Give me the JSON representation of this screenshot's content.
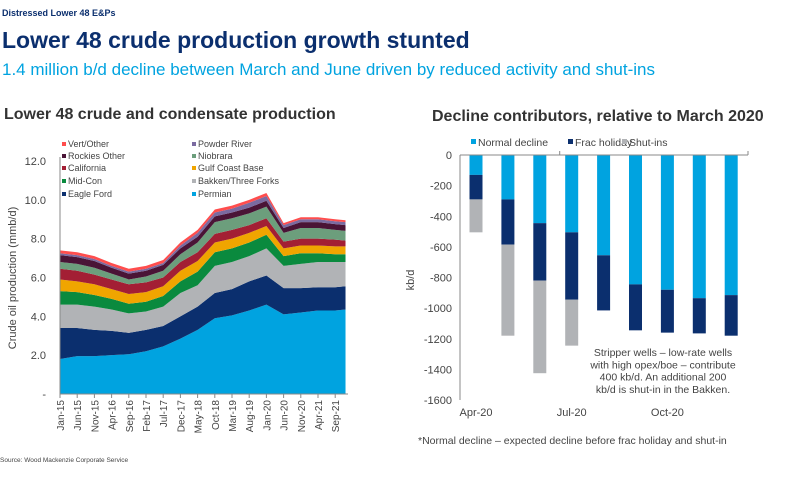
{
  "header": {
    "kicker": "Distressed Lower 48 E&Ps",
    "title": "Lower 48 crude production growth stunted",
    "subtitle": "1.4 million b/d decline between March and June driven by reduced activity and shut-ins"
  },
  "source": "Source: Wood Mackenzie Corporate Service",
  "chart_data": [
    {
      "type": "area",
      "stacked": true,
      "title": "Lower 48 crude and condensate production",
      "ylabel": "Crude oil production (mmb/d)",
      "xlabel": "",
      "ylim": [
        0,
        12
      ],
      "y_ticks": [
        "-",
        "2.0",
        "4.0",
        "6.0",
        "8.0",
        "10.0",
        "12.0"
      ],
      "x_tick_labels": [
        "Jan-15",
        "Jun-15",
        "Nov-15",
        "Apr-16",
        "Sep-16",
        "Feb-17",
        "Jul-17",
        "Dec-17",
        "May-18",
        "Oct-18",
        "Mar-19",
        "Aug-19",
        "Jan-20",
        "Jun-20",
        "Nov-20",
        "Apr-21",
        "Sep-21"
      ],
      "x": [
        "Jan-15",
        "Jun-15",
        "Nov-15",
        "Apr-16",
        "Sep-16",
        "Feb-17",
        "Jul-17",
        "Dec-17",
        "May-18",
        "Oct-18",
        "Mar-19",
        "Aug-19",
        "Jan-20",
        "Jun-20",
        "Nov-20",
        "Apr-21",
        "Sep-21",
        "Dec-21"
      ],
      "legend_position": "top-left",
      "series": [
        {
          "name": "Permian",
          "color": "#00a3e0",
          "values": [
            1.8,
            1.95,
            1.95,
            2.0,
            2.05,
            2.2,
            2.45,
            2.85,
            3.3,
            3.9,
            4.05,
            4.3,
            4.6,
            4.1,
            4.2,
            4.3,
            4.3,
            4.35
          ]
        },
        {
          "name": "Eagle Ford",
          "color": "#0b2f6e",
          "values": [
            1.6,
            1.45,
            1.35,
            1.25,
            1.1,
            1.1,
            1.05,
            1.15,
            1.2,
            1.3,
            1.35,
            1.5,
            1.5,
            1.35,
            1.25,
            1.2,
            1.2,
            1.2
          ]
        },
        {
          "name": "Bakken/Three Forks",
          "color": "#b1b3b6",
          "values": [
            1.2,
            1.2,
            1.2,
            1.1,
            1.0,
            0.95,
            1.0,
            1.2,
            1.1,
            1.4,
            1.4,
            1.3,
            1.4,
            1.15,
            1.25,
            1.3,
            1.3,
            1.25
          ]
        },
        {
          "name": "Mid-Con",
          "color": "#0a8a3e",
          "values": [
            0.7,
            0.65,
            0.6,
            0.55,
            0.5,
            0.5,
            0.55,
            0.6,
            0.7,
            0.7,
            0.7,
            0.7,
            0.7,
            0.5,
            0.55,
            0.45,
            0.4,
            0.4
          ]
        },
        {
          "name": "Gulf Coast Base",
          "color": "#f0a500",
          "values": [
            0.6,
            0.55,
            0.55,
            0.5,
            0.5,
            0.5,
            0.5,
            0.55,
            0.55,
            0.5,
            0.5,
            0.5,
            0.45,
            0.4,
            0.4,
            0.4,
            0.4,
            0.4
          ]
        },
        {
          "name": "California",
          "color": "#a31f34",
          "values": [
            0.55,
            0.55,
            0.5,
            0.5,
            0.5,
            0.5,
            0.45,
            0.45,
            0.45,
            0.45,
            0.45,
            0.4,
            0.4,
            0.35,
            0.35,
            0.35,
            0.35,
            0.3
          ]
        },
        {
          "name": "Niobrara",
          "color": "#6c9e7c",
          "values": [
            0.35,
            0.35,
            0.35,
            0.3,
            0.25,
            0.3,
            0.35,
            0.4,
            0.5,
            0.6,
            0.6,
            0.6,
            0.6,
            0.45,
            0.55,
            0.55,
            0.5,
            0.5
          ]
        },
        {
          "name": "Rockies Other",
          "color": "#4a1436",
          "values": [
            0.35,
            0.35,
            0.35,
            0.3,
            0.3,
            0.3,
            0.3,
            0.3,
            0.3,
            0.3,
            0.3,
            0.3,
            0.3,
            0.25,
            0.3,
            0.3,
            0.3,
            0.3
          ]
        },
        {
          "name": "Powder River",
          "color": "#7a6aa0",
          "values": [
            0.1,
            0.1,
            0.1,
            0.1,
            0.1,
            0.1,
            0.1,
            0.15,
            0.2,
            0.2,
            0.2,
            0.25,
            0.25,
            0.15,
            0.15,
            0.15,
            0.15,
            0.15
          ]
        },
        {
          "name": "Vert/Other",
          "color": "#ff4d4d",
          "values": [
            0.15,
            0.15,
            0.15,
            0.15,
            0.15,
            0.15,
            0.15,
            0.15,
            0.15,
            0.15,
            0.15,
            0.15,
            0.15,
            0.1,
            0.1,
            0.1,
            0.1,
            0.1
          ]
        }
      ],
      "legend_order": [
        "Vert/Other",
        "Powder River",
        "Rockies Other",
        "Niobrara",
        "California",
        "Gulf Coast Base",
        "Mid-Con",
        "Bakken/Three Forks",
        "Eagle Ford",
        "Permian"
      ]
    },
    {
      "type": "bar",
      "stacked": true,
      "title": "Decline contributors, relative to March 2020",
      "ylabel": "kb/d",
      "xlabel": "",
      "ylim": [
        -1600,
        0
      ],
      "y_ticks": [
        "0",
        "-200",
        "-400",
        "-600",
        "-800",
        "-1000",
        "-1200",
        "-1400",
        "-1600"
      ],
      "categories": [
        "Apr-20",
        "May-20",
        "Jun-20",
        "Jul-20",
        "Aug-20",
        "Sep-20",
        "Oct-20",
        "Nov-20",
        "Dec-20"
      ],
      "x_tick_labels": [
        "Apr-20",
        "Jul-20",
        "Oct-20"
      ],
      "legend_position": "top",
      "series": [
        {
          "name": "Normal decline",
          "color": "#00a3e0",
          "values": [
            -130,
            -290,
            -445,
            -505,
            -655,
            -845,
            -880,
            -935,
            -915
          ]
        },
        {
          "name": "Frac holiday",
          "color": "#0b2f6e",
          "values": [
            -160,
            -295,
            -375,
            -440,
            -360,
            -300,
            -280,
            -230,
            -265
          ]
        },
        {
          "name": "Shut-ins",
          "color": "#b1b3b6",
          "values": [
            -215,
            -595,
            -605,
            -300,
            0,
            0,
            0,
            0,
            0
          ]
        }
      ],
      "annotation": [
        "Stripper wells – low-rate wells",
        "with high opex/boe – contribute",
        "400 kb/d. An additional 200",
        "kb/d is shut-in in the Bakken."
      ],
      "footnote": "*Normal decline – expected decline before frac holiday and shut-in"
    }
  ]
}
